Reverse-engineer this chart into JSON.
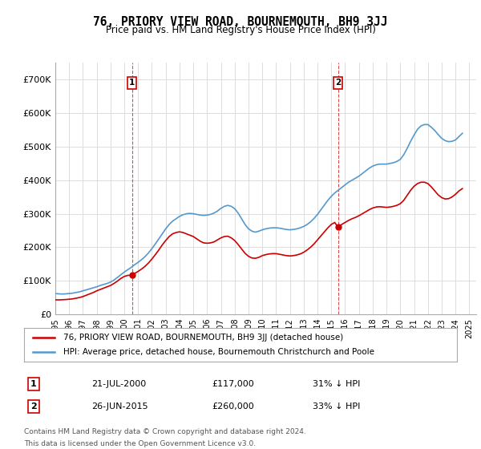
{
  "title": "76, PRIORY VIEW ROAD, BOURNEMOUTH, BH9 3JJ",
  "subtitle": "Price paid vs. HM Land Registry's House Price Index (HPI)",
  "background_color": "#ffffff",
  "plot_bg_color": "#ffffff",
  "grid_color": "#dddddd",
  "ylim": [
    0,
    750000
  ],
  "yticks": [
    0,
    100000,
    200000,
    300000,
    400000,
    500000,
    600000,
    700000
  ],
  "ytick_labels": [
    "£0",
    "£100K",
    "£200K",
    "£300K",
    "£400K",
    "£500K",
    "£600K",
    "£700K"
  ],
  "xlim_start": 1995.0,
  "xlim_end": 2025.5,
  "xtick_years": [
    1995,
    1996,
    1997,
    1998,
    1999,
    2000,
    2001,
    2002,
    2003,
    2004,
    2005,
    2006,
    2007,
    2008,
    2009,
    2010,
    2011,
    2012,
    2013,
    2014,
    2015,
    2016,
    2017,
    2018,
    2019,
    2020,
    2021,
    2022,
    2023,
    2024,
    2025
  ],
  "legend_line1": "76, PRIORY VIEW ROAD, BOURNEMOUTH, BH9 3JJ (detached house)",
  "legend_line2": "HPI: Average price, detached house, Bournemouth Christchurch and Poole",
  "red_line_color": "#cc0000",
  "blue_line_color": "#5599cc",
  "marker1_x": 2000.55,
  "marker1_y": 117000,
  "marker1_label": "1",
  "marker1_date": "21-JUL-2000",
  "marker1_price": "£117,000",
  "marker1_hpi": "31% ↓ HPI",
  "marker2_x": 2015.48,
  "marker2_y": 260000,
  "marker2_label": "2",
  "marker2_date": "26-JUN-2015",
  "marker2_price": "£260,000",
  "marker2_hpi": "33% ↓ HPI",
  "dashed_line1_x": 2000.55,
  "dashed_line2_x": 2015.48,
  "footer_line1": "Contains HM Land Registry data © Crown copyright and database right 2024.",
  "footer_line2": "This data is licensed under the Open Government Licence v3.0.",
  "hpi_data_x": [
    1995.0,
    1995.25,
    1995.5,
    1995.75,
    1996.0,
    1996.25,
    1996.5,
    1996.75,
    1997.0,
    1997.25,
    1997.5,
    1997.75,
    1998.0,
    1998.25,
    1998.5,
    1998.75,
    1999.0,
    1999.25,
    1999.5,
    1999.75,
    2000.0,
    2000.25,
    2000.5,
    2000.75,
    2001.0,
    2001.25,
    2001.5,
    2001.75,
    2002.0,
    2002.25,
    2002.5,
    2002.75,
    2003.0,
    2003.25,
    2003.5,
    2003.75,
    2004.0,
    2004.25,
    2004.5,
    2004.75,
    2005.0,
    2005.25,
    2005.5,
    2005.75,
    2006.0,
    2006.25,
    2006.5,
    2006.75,
    2007.0,
    2007.25,
    2007.5,
    2007.75,
    2008.0,
    2008.25,
    2008.5,
    2008.75,
    2009.0,
    2009.25,
    2009.5,
    2009.75,
    2010.0,
    2010.25,
    2010.5,
    2010.75,
    2011.0,
    2011.25,
    2011.5,
    2011.75,
    2012.0,
    2012.25,
    2012.5,
    2012.75,
    2013.0,
    2013.25,
    2013.5,
    2013.75,
    2014.0,
    2014.25,
    2014.5,
    2014.75,
    2015.0,
    2015.25,
    2015.5,
    2015.75,
    2016.0,
    2016.25,
    2016.5,
    2016.75,
    2017.0,
    2017.25,
    2017.5,
    2017.75,
    2018.0,
    2018.25,
    2018.5,
    2018.75,
    2019.0,
    2019.25,
    2019.5,
    2019.75,
    2020.0,
    2020.25,
    2020.5,
    2020.75,
    2021.0,
    2021.25,
    2021.5,
    2021.75,
    2022.0,
    2022.25,
    2022.5,
    2022.75,
    2023.0,
    2023.25,
    2023.5,
    2023.75,
    2024.0,
    2024.25,
    2024.5
  ],
  "hpi_data_y": [
    62000,
    61000,
    60500,
    61000,
    62000,
    63000,
    65000,
    67000,
    70000,
    73000,
    76000,
    79000,
    82000,
    86000,
    89000,
    92000,
    96000,
    102000,
    110000,
    118000,
    126000,
    133000,
    140000,
    148000,
    155000,
    163000,
    172000,
    183000,
    196000,
    210000,
    225000,
    240000,
    255000,
    268000,
    278000,
    285000,
    292000,
    297000,
    300000,
    301000,
    300000,
    298000,
    296000,
    295000,
    296000,
    298000,
    302000,
    308000,
    316000,
    322000,
    325000,
    322000,
    315000,
    302000,
    285000,
    268000,
    255000,
    248000,
    245000,
    248000,
    252000,
    255000,
    257000,
    258000,
    258000,
    257000,
    255000,
    253000,
    252000,
    253000,
    255000,
    258000,
    262000,
    268000,
    276000,
    286000,
    298000,
    312000,
    326000,
    340000,
    352000,
    362000,
    370000,
    378000,
    386000,
    394000,
    400000,
    406000,
    412000,
    420000,
    428000,
    436000,
    442000,
    446000,
    448000,
    448000,
    448000,
    450000,
    452000,
    456000,
    462000,
    476000,
    495000,
    516000,
    535000,
    552000,
    562000,
    566000,
    566000,
    558000,
    548000,
    536000,
    525000,
    518000,
    515000,
    516000,
    520000,
    530000,
    540000
  ],
  "red_data_x": [
    1995.0,
    1995.25,
    1995.5,
    1995.75,
    1996.0,
    1996.25,
    1996.5,
    1996.75,
    1997.0,
    1997.25,
    1997.5,
    1997.75,
    1998.0,
    1998.25,
    1998.5,
    1998.75,
    1999.0,
    1999.25,
    1999.5,
    1999.75,
    2000.0,
    2000.25,
    2000.55,
    2000.75,
    2001.0,
    2001.25,
    2001.5,
    2001.75,
    2002.0,
    2002.25,
    2002.5,
    2002.75,
    2003.0,
    2003.25,
    2003.5,
    2003.75,
    2004.0,
    2004.25,
    2004.5,
    2004.75,
    2005.0,
    2005.25,
    2005.5,
    2005.75,
    2006.0,
    2006.25,
    2006.5,
    2006.75,
    2007.0,
    2007.25,
    2007.5,
    2007.75,
    2008.0,
    2008.25,
    2008.5,
    2008.75,
    2009.0,
    2009.25,
    2009.5,
    2009.75,
    2010.0,
    2010.25,
    2010.5,
    2010.75,
    2011.0,
    2011.25,
    2011.5,
    2011.75,
    2012.0,
    2012.25,
    2012.5,
    2012.75,
    2013.0,
    2013.25,
    2013.5,
    2013.75,
    2014.0,
    2014.25,
    2014.5,
    2014.75,
    2015.0,
    2015.25,
    2015.48,
    2015.75,
    2016.0,
    2016.25,
    2016.5,
    2016.75,
    2017.0,
    2017.25,
    2017.5,
    2017.75,
    2018.0,
    2018.25,
    2018.5,
    2018.75,
    2019.0,
    2019.25,
    2019.5,
    2019.75,
    2020.0,
    2020.25,
    2020.5,
    2020.75,
    2021.0,
    2021.25,
    2021.5,
    2021.75,
    2022.0,
    2022.25,
    2022.5,
    2022.75,
    2023.0,
    2023.25,
    2023.5,
    2023.75,
    2024.0,
    2024.25,
    2024.5
  ],
  "red_data_y": [
    43000,
    43000,
    43500,
    44000,
    45000,
    46000,
    48000,
    50000,
    53000,
    57000,
    61000,
    65000,
    70000,
    74000,
    78000,
    82000,
    86000,
    92000,
    99000,
    107000,
    113000,
    116000,
    117000,
    122000,
    128000,
    135000,
    143000,
    153000,
    165000,
    178000,
    192000,
    207000,
    220000,
    232000,
    240000,
    244000,
    246000,
    244000,
    240000,
    236000,
    232000,
    225000,
    218000,
    213000,
    212000,
    213000,
    216000,
    222000,
    228000,
    232000,
    233000,
    228000,
    220000,
    208000,
    195000,
    182000,
    173000,
    168000,
    167000,
    170000,
    175000,
    178000,
    180000,
    181000,
    181000,
    179000,
    177000,
    175000,
    174000,
    175000,
    177000,
    180000,
    185000,
    192000,
    200000,
    210000,
    222000,
    234000,
    246000,
    258000,
    268000,
    274000,
    260000,
    268000,
    274000,
    280000,
    285000,
    289000,
    294000,
    300000,
    306000,
    312000,
    317000,
    320000,
    321000,
    320000,
    319000,
    320000,
    322000,
    325000,
    330000,
    340000,
    355000,
    370000,
    382000,
    390000,
    394000,
    394000,
    390000,
    380000,
    368000,
    356000,
    348000,
    344000,
    345000,
    350000,
    358000,
    368000,
    375000
  ]
}
